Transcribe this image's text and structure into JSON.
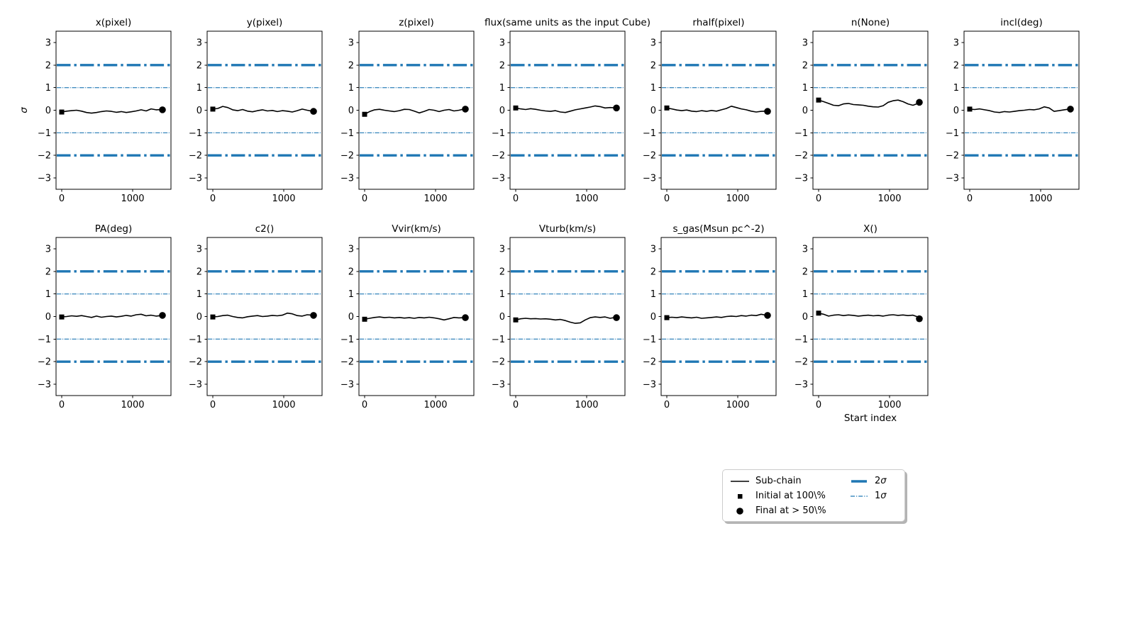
{
  "colors": {
    "accent_blue": "#1f77b4",
    "trace_black": "#000000",
    "background": "#ffffff",
    "legend_border": "#cccccc",
    "legend_shadow": "#b4b4b4"
  },
  "chart_data": {
    "type": "line",
    "description": "Grid of 13 MCMC sub-chain trace plots in sigma units",
    "xlabel": "Start index",
    "ylabel": "σ",
    "xlim": [
      -80,
      1540
    ],
    "ylim": [
      -3.5,
      3.5
    ],
    "xticks": [
      0,
      1000
    ],
    "yticks": [
      3,
      2,
      1,
      0,
      -1,
      -2,
      -3
    ],
    "grid": false,
    "sigma_lines": [
      {
        "name": "2sigma",
        "levels": [
          2,
          -2
        ],
        "style": "dashdot",
        "weight": "thick"
      },
      {
        "name": "1sigma",
        "levels": [
          1,
          -1
        ],
        "style": "dashdot",
        "weight": "thin"
      }
    ],
    "x": [
      0,
      70,
      140,
      210,
      280,
      350,
      420,
      490,
      560,
      630,
      700,
      770,
      840,
      910,
      980,
      1050,
      1120,
      1190,
      1260,
      1330,
      1400,
      1420
    ],
    "panels": [
      {
        "id": "x-pixel",
        "title": "x(pixel)",
        "row": 0,
        "col": 0,
        "y": [
          -0.08,
          -0.04,
          -0.02,
          0.0,
          -0.04,
          -0.1,
          -0.13,
          -0.1,
          -0.06,
          -0.03,
          -0.05,
          -0.09,
          -0.06,
          -0.1,
          -0.07,
          -0.03,
          0.02,
          -0.03,
          0.06,
          0.02,
          0.03,
          0.02
        ]
      },
      {
        "id": "y-pixel",
        "title": "y(pixel)",
        "row": 0,
        "col": 1,
        "y": [
          0.05,
          0.08,
          0.17,
          0.12,
          0.02,
          -0.02,
          0.03,
          -0.04,
          -0.07,
          -0.02,
          0.02,
          -0.03,
          -0.01,
          -0.06,
          -0.02,
          -0.04,
          -0.08,
          -0.02,
          0.05,
          0.0,
          -0.04,
          -0.05
        ]
      },
      {
        "id": "z-pixel",
        "title": "z(pixel)",
        "row": 0,
        "col": 2,
        "y": [
          -0.18,
          -0.06,
          0.02,
          0.04,
          0.0,
          -0.03,
          -0.06,
          -0.02,
          0.04,
          0.03,
          -0.04,
          -0.12,
          -0.05,
          0.03,
          0.0,
          -0.06,
          0.0,
          0.03,
          -0.03,
          0.0,
          0.05,
          0.05
        ]
      },
      {
        "id": "flux",
        "title": "flux(same units as the input Cube)",
        "row": 0,
        "col": 3,
        "y": [
          0.1,
          0.06,
          0.03,
          0.07,
          0.04,
          0.0,
          -0.03,
          -0.05,
          -0.02,
          -0.08,
          -0.1,
          -0.04,
          0.02,
          0.06,
          0.1,
          0.14,
          0.19,
          0.16,
          0.1,
          0.12,
          0.11,
          0.1
        ]
      },
      {
        "id": "rhalf-pixel",
        "title": "rhalf(pixel)",
        "row": 0,
        "col": 4,
        "y": [
          0.1,
          0.06,
          0.01,
          -0.02,
          0.01,
          -0.04,
          -0.06,
          -0.02,
          -0.05,
          -0.01,
          -0.04,
          0.02,
          0.08,
          0.18,
          0.12,
          0.06,
          0.02,
          -0.04,
          -0.08,
          -0.05,
          -0.04,
          -0.05
        ]
      },
      {
        "id": "n-none",
        "title": "n(None)",
        "row": 0,
        "col": 5,
        "y": [
          0.45,
          0.38,
          0.3,
          0.22,
          0.2,
          0.28,
          0.3,
          0.25,
          0.24,
          0.22,
          0.18,
          0.15,
          0.14,
          0.2,
          0.35,
          0.42,
          0.45,
          0.38,
          0.28,
          0.22,
          0.3,
          0.35
        ]
      },
      {
        "id": "incl-deg",
        "title": "incl(deg)",
        "row": 0,
        "col": 6,
        "y": [
          0.05,
          0.03,
          0.06,
          0.02,
          -0.02,
          -0.08,
          -0.1,
          -0.06,
          -0.08,
          -0.05,
          -0.02,
          0.0,
          0.03,
          0.02,
          0.06,
          0.15,
          0.1,
          -0.05,
          -0.02,
          0.02,
          0.05,
          0.05
        ]
      },
      {
        "id": "pa-deg",
        "title": "PA(deg)",
        "row": 1,
        "col": 0,
        "y": [
          -0.02,
          0.0,
          0.03,
          0.01,
          0.04,
          0.0,
          -0.04,
          0.02,
          -0.03,
          0.0,
          0.02,
          -0.02,
          0.01,
          0.05,
          0.02,
          0.08,
          0.1,
          0.03,
          0.06,
          0.02,
          0.04,
          0.05
        ]
      },
      {
        "id": "c2",
        "title": "c2()",
        "row": 1,
        "col": 1,
        "y": [
          -0.02,
          0.0,
          0.04,
          0.06,
          0.0,
          -0.04,
          -0.06,
          -0.01,
          0.02,
          0.04,
          0.0,
          0.02,
          0.05,
          0.03,
          0.06,
          0.15,
          0.12,
          0.04,
          0.02,
          0.08,
          0.06,
          0.05
        ]
      },
      {
        "id": "vvir-kms",
        "title": "Vvir(km/s)",
        "row": 1,
        "col": 2,
        "y": [
          -0.12,
          -0.08,
          -0.04,
          -0.02,
          -0.05,
          -0.03,
          -0.06,
          -0.04,
          -0.07,
          -0.05,
          -0.08,
          -0.04,
          -0.06,
          -0.03,
          -0.06,
          -0.1,
          -0.15,
          -0.1,
          -0.04,
          -0.06,
          -0.05,
          -0.05
        ]
      },
      {
        "id": "vturb-kms",
        "title": "Vturb(km/s)",
        "row": 1,
        "col": 3,
        "y": [
          -0.15,
          -0.1,
          -0.08,
          -0.1,
          -0.09,
          -0.11,
          -0.1,
          -0.12,
          -0.15,
          -0.13,
          -0.18,
          -0.25,
          -0.3,
          -0.28,
          -0.15,
          -0.05,
          -0.02,
          -0.04,
          -0.02,
          -0.08,
          -0.04,
          -0.05
        ]
      },
      {
        "id": "s-gas",
        "title": "s_gas(Msun pc^-2)",
        "row": 1,
        "col": 4,
        "y": [
          -0.05,
          -0.03,
          -0.05,
          -0.02,
          -0.04,
          -0.06,
          -0.03,
          -0.08,
          -0.06,
          -0.04,
          -0.02,
          -0.04,
          0.0,
          0.02,
          0.0,
          0.04,
          0.02,
          0.06,
          0.04,
          0.1,
          0.06,
          0.05
        ]
      },
      {
        "id": "x-param",
        "title": "X()",
        "row": 1,
        "col": 5,
        "y": [
          0.15,
          0.1,
          0.02,
          0.06,
          0.08,
          0.04,
          0.07,
          0.05,
          0.02,
          0.04,
          0.06,
          0.03,
          0.05,
          0.02,
          0.06,
          0.08,
          0.05,
          0.07,
          0.04,
          0.06,
          -0.02,
          -0.1
        ]
      }
    ],
    "legend": {
      "col1": [
        {
          "label": "Sub-chain",
          "marker": "black-line"
        },
        {
          "label": "Initial at 100\\%",
          "marker": "black-square"
        },
        {
          "label": "Final at > 50\\%",
          "marker": "black-circle"
        }
      ],
      "col2": [
        {
          "num": "2",
          "sym": "σ",
          "marker": "blue-thick-line"
        },
        {
          "num": "1",
          "sym": "σ",
          "marker": "blue-dashdot-line"
        }
      ]
    }
  }
}
